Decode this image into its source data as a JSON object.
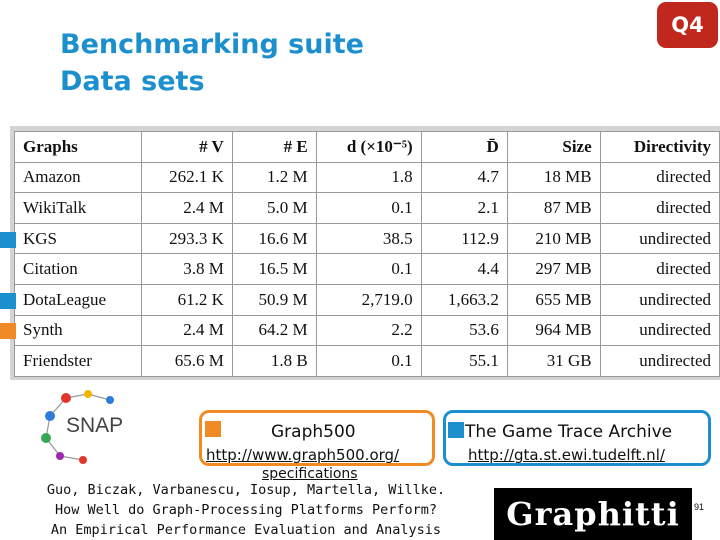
{
  "slide": {
    "title_line1": "Benchmarking suite",
    "title_line2": "Data sets",
    "badge": "Q4",
    "page_number": "91"
  },
  "table": {
    "headers": [
      "Graphs",
      "# V",
      "# E",
      "d (×10⁻⁵)",
      "D̄",
      "Size",
      "Directivity"
    ],
    "rows": [
      [
        "Amazon",
        "262.1 K",
        "1.2 M",
        "1.8",
        "4.7",
        "18 MB",
        "directed"
      ],
      [
        "WikiTalk",
        "2.4 M",
        "5.0 M",
        "0.1",
        "2.1",
        "87 MB",
        "directed"
      ],
      [
        "KGS",
        "293.3 K",
        "16.6 M",
        "38.5",
        "112.9",
        "210 MB",
        "undirected"
      ],
      [
        "Citation",
        "3.8 M",
        "16.5 M",
        "0.1",
        "4.4",
        "297 MB",
        "directed"
      ],
      [
        "DotaLeague",
        "61.2 K",
        "50.9 M",
        "2,719.0",
        "1,663.2",
        "655 MB",
        "undirected"
      ],
      [
        "Synth",
        "2.4 M",
        "64.2 M",
        "2.2",
        "53.6",
        "964 MB",
        "undirected"
      ],
      [
        "Friendster",
        "65.6 M",
        "1.8 B",
        "0.1",
        "55.1",
        "31 GB",
        "undirected"
      ]
    ]
  },
  "markers": {
    "blue_color": "#1c8fce",
    "orange_color": "#f08a24"
  },
  "sources": {
    "snap_label": "SNAP",
    "graph500_label": "Graph500",
    "graph500_url": "http://www.graph500.org/",
    "graph500_url_extra": "specifications",
    "gta_label": "The Game Trace Archive",
    "gta_url": "http://gta.st.ewi.tudelft.nl/"
  },
  "citation": {
    "line1": "Guo, Biczak, Varbanescu, Iosup, Martella, Willke.",
    "line2": "How Well do Graph-Processing Platforms Perform?",
    "line3": "An Empirical Performance Evaluation and Analysis"
  },
  "logo": "Graphitti"
}
